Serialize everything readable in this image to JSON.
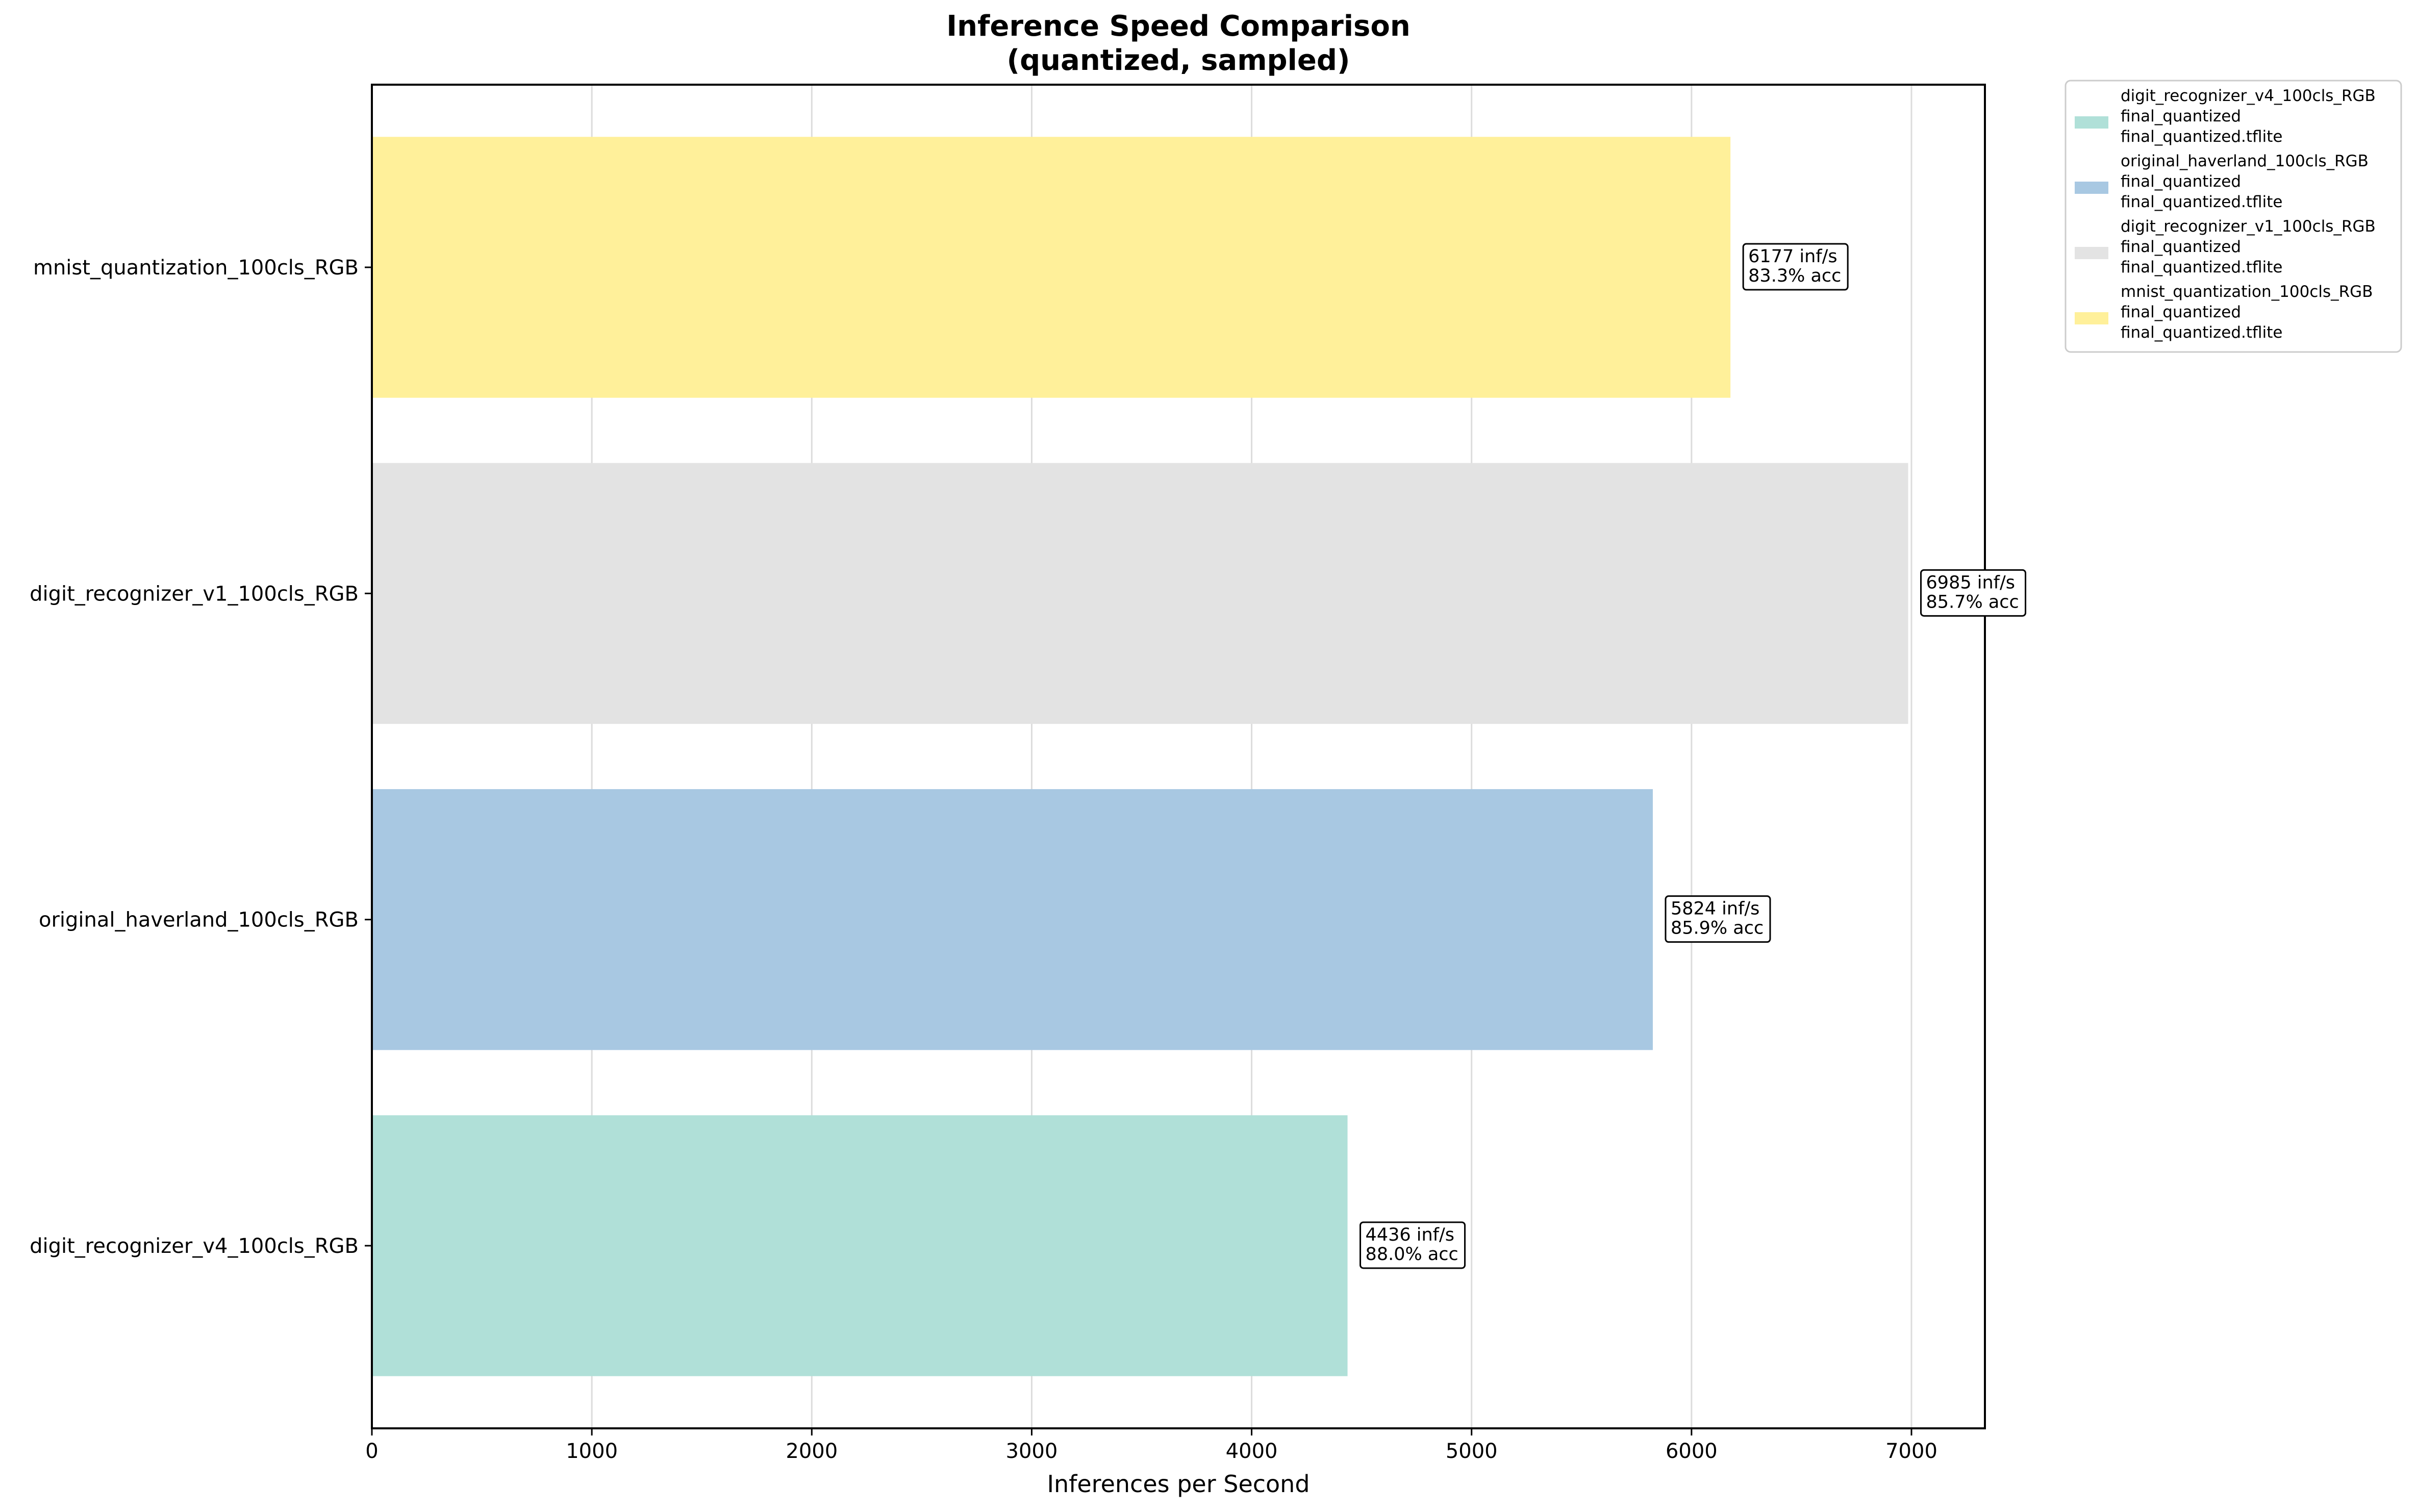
{
  "chart_data": {
    "type": "bar",
    "orientation": "horizontal",
    "title": "Inference Speed Comparison",
    "subtitle": "(quantized, sampled)",
    "xlabel": "Inferences per Second",
    "ylabel": "",
    "xlim": [
      0,
      7334
    ],
    "xticks": [
      "0",
      "1000",
      "2000",
      "3000",
      "4000",
      "5000",
      "6000",
      "7000"
    ],
    "grid": "vertical",
    "legend_position": "outside-top-right",
    "categories": [
      "digit_recognizer_v4_100cls_RGB",
      "original_haverland_100cls_RGB",
      "digit_recognizer_v1_100cls_RGB",
      "mnist_quantization_100cls_RGB"
    ],
    "values": [
      4436,
      5824,
      6985,
      6177
    ],
    "accuracy": [
      "88.0%",
      "85.9%",
      "85.7%",
      "83.3%"
    ],
    "bar_labels": [
      [
        "4436 inf/s",
        "88.0% acc"
      ],
      [
        "5824 inf/s",
        "85.9% acc"
      ],
      [
        "6985 inf/s",
        "85.7% acc"
      ],
      [
        "6177 inf/s",
        "83.3% acc"
      ]
    ],
    "colors": [
      "#b0e0d8",
      "#a8c8e2",
      "#e3e3e3",
      "#fff09a"
    ],
    "legend": [
      [
        "digit_recognizer_v4_100cls_RGB",
        "final_quantized",
        "final_quantized.tflite"
      ],
      [
        "original_haverland_100cls_RGB",
        "final_quantized",
        "final_quantized.tflite"
      ],
      [
        "digit_recognizer_v1_100cls_RGB",
        "final_quantized",
        "final_quantized.tflite"
      ],
      [
        "mnist_quantization_100cls_RGB",
        "final_quantized",
        "final_quantized.tflite"
      ]
    ]
  }
}
